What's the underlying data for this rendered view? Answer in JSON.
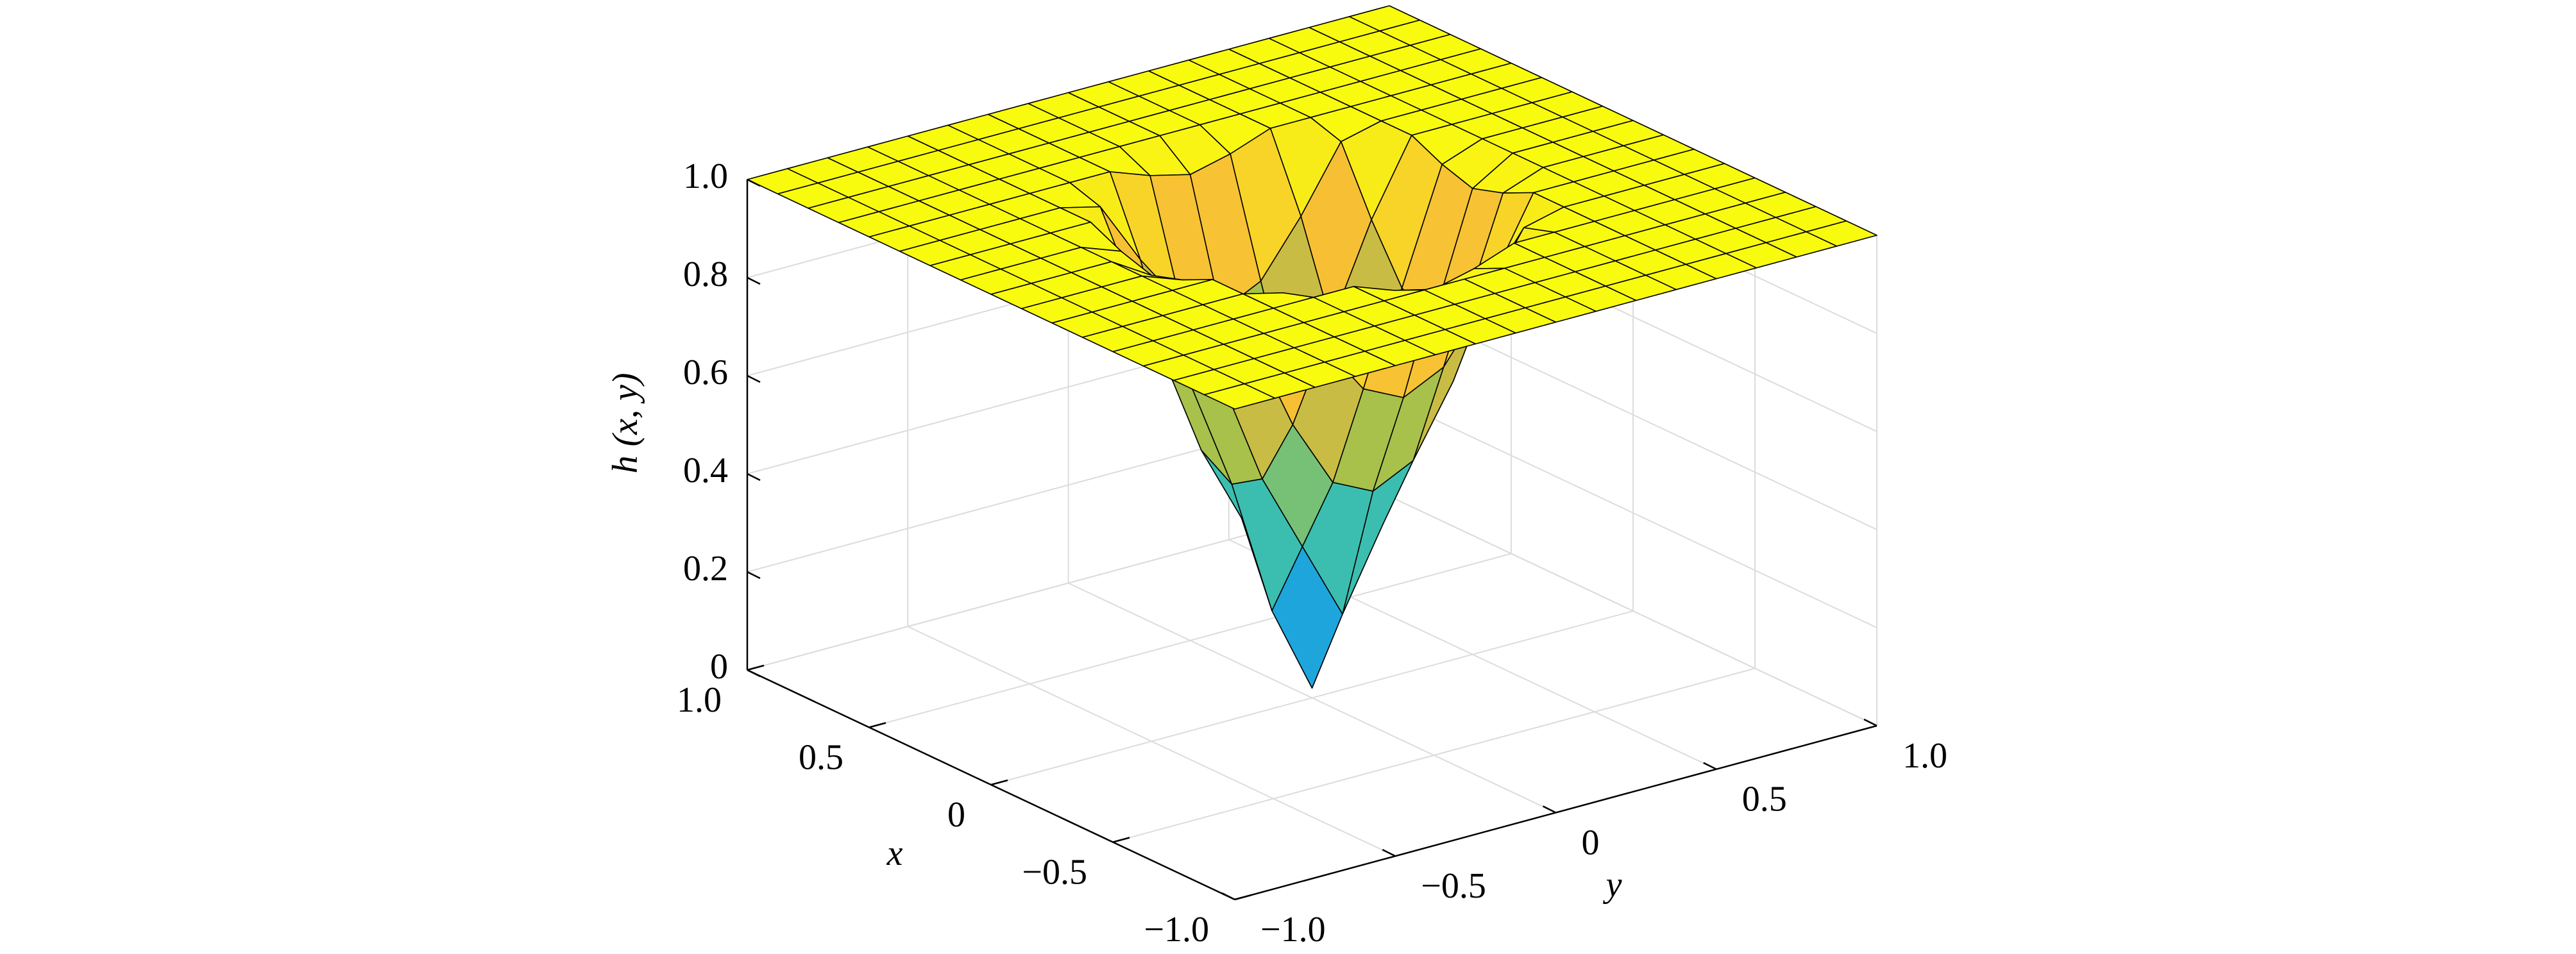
{
  "chart_data": {
    "type": "surface",
    "xlabel": "x",
    "ylabel": "y",
    "zlabel": "h (x, y)",
    "x": [
      -1,
      -0.875,
      -0.75,
      -0.625,
      -0.5,
      -0.375,
      -0.25,
      -0.125,
      0,
      0.125,
      0.25,
      0.375,
      0.5,
      0.625,
      0.75,
      0.875,
      1
    ],
    "y": [
      -1,
      -0.875,
      -0.75,
      -0.625,
      -0.5,
      -0.375,
      -0.25,
      -0.125,
      0,
      0.125,
      0.25,
      0.375,
      0.5,
      0.625,
      0.75,
      0.875,
      1
    ],
    "z": [
      [
        1,
        1,
        1,
        1,
        1,
        1,
        1,
        1,
        1,
        1,
        1,
        1,
        1,
        1,
        1,
        1,
        1
      ],
      [
        1,
        1,
        1,
        1,
        1,
        1,
        1,
        1,
        1,
        1,
        1,
        1,
        1,
        1,
        1,
        1,
        1
      ],
      [
        1,
        1,
        1,
        1,
        1,
        1,
        1,
        1,
        1,
        1,
        1,
        1,
        1,
        1,
        1,
        1,
        1
      ],
      [
        1,
        1,
        1,
        1,
        1,
        1,
        1,
        1,
        1,
        1,
        1,
        1,
        1,
        1,
        1,
        1,
        1
      ],
      [
        1,
        1,
        1,
        1,
        1,
        1,
        1,
        0.97,
        0.95,
        0.97,
        1,
        1,
        1,
        1,
        1,
        1,
        1
      ],
      [
        1,
        1,
        1,
        1,
        1,
        0.98,
        0.85,
        0.74,
        0.7,
        0.74,
        0.85,
        0.98,
        1,
        1,
        1,
        1,
        1
      ],
      [
        1,
        1,
        1,
        1,
        1,
        0.85,
        0.66,
        0.52,
        0.48,
        0.52,
        0.66,
        0.85,
        1,
        1,
        1,
        1,
        1
      ],
      [
        1,
        1,
        1,
        1,
        0.97,
        0.74,
        0.52,
        0.36,
        0.2,
        0.36,
        0.52,
        0.74,
        0.97,
        1,
        1,
        1,
        1
      ],
      [
        1,
        1,
        1,
        1,
        0.95,
        0.7,
        0.48,
        0.2,
        0.02,
        0.2,
        0.48,
        0.7,
        0.95,
        1,
        1,
        1,
        1
      ],
      [
        1,
        1,
        1,
        1,
        0.97,
        0.74,
        0.52,
        0.36,
        0.2,
        0.36,
        0.52,
        0.74,
        0.97,
        1,
        1,
        1,
        1
      ],
      [
        1,
        1,
        1,
        1,
        1,
        0.85,
        0.66,
        0.52,
        0.48,
        0.52,
        0.66,
        0.85,
        1,
        1,
        1,
        1,
        1
      ],
      [
        1,
        1,
        1,
        1,
        1,
        0.98,
        0.85,
        0.74,
        0.7,
        0.74,
        0.85,
        0.98,
        1,
        1,
        1,
        1,
        1
      ],
      [
        1,
        1,
        1,
        1,
        1,
        1,
        1,
        0.97,
        0.95,
        0.97,
        1,
        1,
        1,
        1,
        1,
        1,
        1
      ],
      [
        1,
        1,
        1,
        1,
        1,
        1,
        1,
        1,
        1,
        1,
        1,
        1,
        1,
        1,
        1,
        1,
        1
      ],
      [
        1,
        1,
        1,
        1,
        1,
        1,
        1,
        1,
        1,
        1,
        1,
        1,
        1,
        1,
        1,
        1,
        1
      ],
      [
        1,
        1,
        1,
        1,
        1,
        1,
        1,
        1,
        1,
        1,
        1,
        1,
        1,
        1,
        1,
        1,
        1
      ],
      [
        1,
        1,
        1,
        1,
        1,
        1,
        1,
        1,
        1,
        1,
        1,
        1,
        1,
        1,
        1,
        1,
        1
      ]
    ],
    "xlim": [
      -1,
      1
    ],
    "ylim": [
      -1,
      1
    ],
    "zlim": [
      0,
      1
    ],
    "xticks": [
      {
        "value": -1,
        "label": "−1.0"
      },
      {
        "value": -0.5,
        "label": "−0.5"
      },
      0,
      0.5,
      {
        "value": 1,
        "label": "1.0"
      }
    ],
    "yticks": [
      {
        "value": -1,
        "label": "−1.0"
      },
      {
        "value": -0.5,
        "label": "−0.5"
      },
      0,
      0.5,
      {
        "value": 1,
        "label": "1.0"
      }
    ],
    "zticks": [
      0,
      0.2,
      0.4,
      0.6,
      0.8,
      {
        "value": 1,
        "label": "1.0"
      }
    ],
    "grid": true,
    "colormap": [
      "#2a5fd8",
      "#1ea8dc",
      "#3cbfae",
      "#a3c24c",
      "#f6b43c",
      "#f9fb0e"
    ],
    "edgecolor": "#000000"
  }
}
